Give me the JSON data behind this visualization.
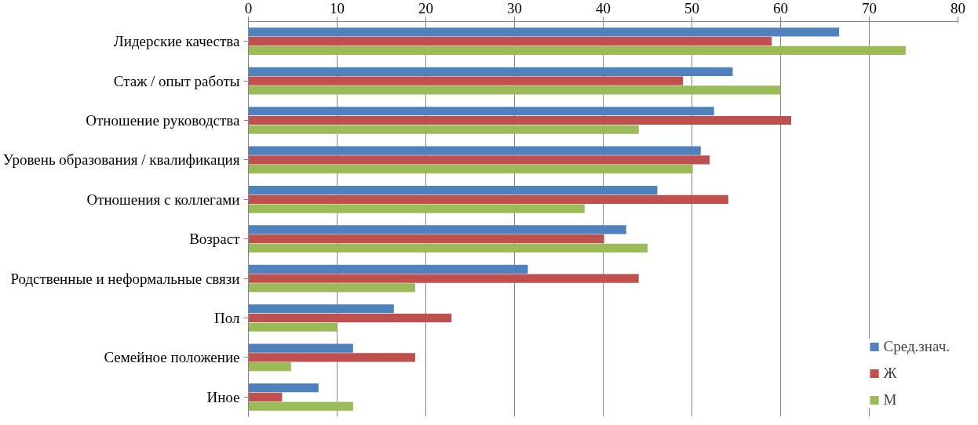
{
  "chart_data": {
    "type": "bar",
    "orientation": "horizontal",
    "categories": [
      "Лидерские качества",
      "Стаж / опыт работы",
      "Отношение руководства",
      "Уровень образования / квалификация",
      "Отношения с коллегами",
      "Возраст",
      "Родственные и неформальные связи",
      "Пол",
      "Семейное положение",
      "Иное"
    ],
    "series": [
      {
        "name": "Сред.знач.",
        "color": "#4f81bd",
        "values": [
          66.6,
          54.6,
          52.5,
          51,
          46.1,
          42.6,
          31.5,
          16.4,
          11.8,
          7.9
        ]
      },
      {
        "name": "Ж",
        "color": "#c0504d",
        "values": [
          59,
          49,
          61.2,
          52,
          54.1,
          40.1,
          44,
          22.9,
          18.8,
          3.8
        ]
      },
      {
        "name": "М",
        "color": "#9bbb59",
        "values": [
          74.1,
          60,
          44,
          50.1,
          37.9,
          45,
          18.8,
          10,
          4.8,
          11.8
        ]
      }
    ],
    "xlim": [
      0,
      80
    ],
    "xticks": [
      0,
      10,
      20,
      30,
      40,
      50,
      60,
      70,
      80
    ],
    "grid": "x",
    "legend": "bottom right"
  }
}
